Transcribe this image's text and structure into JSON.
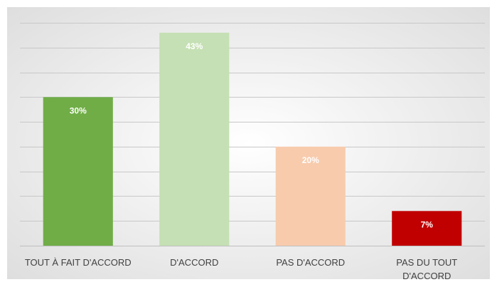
{
  "chart_data": {
    "type": "bar",
    "categories": [
      "TOUT À FAIT D'ACCORD",
      "D'ACCORD",
      "PAS D'ACCORD",
      "PAS DU TOUT D'ACCORD"
    ],
    "category_lines": [
      [
        "TOUT À FAIT D'ACCORD"
      ],
      [
        "D'ACCORD"
      ],
      [
        "PAS D'ACCORD"
      ],
      [
        "PAS DU TOUT",
        "D'ACCORD"
      ]
    ],
    "values": [
      30,
      43,
      20,
      7
    ],
    "data_labels": [
      "30%",
      "43%",
      "20%",
      "7%"
    ],
    "colors": [
      "#70ad47",
      "#c5e0b4",
      "#f8cbad",
      "#c00000"
    ],
    "ylim": [
      0,
      45
    ],
    "grid": true,
    "legend": "none",
    "title": "",
    "xlabel": "",
    "ylabel": ""
  }
}
